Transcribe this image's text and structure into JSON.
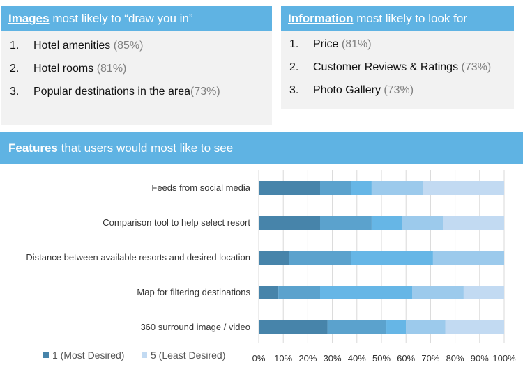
{
  "images_panel": {
    "title_highlight": "Images",
    "title_rest": " most likely to “draw you in”",
    "items": [
      {
        "num": "1.",
        "label": "Hotel amenities",
        "pct": "(85%)"
      },
      {
        "num": "2.",
        "label": "Hotel rooms",
        "pct": "(81%)"
      },
      {
        "num": "3.",
        "label": "Popular destinations in the area",
        "pct": "(73%)"
      }
    ]
  },
  "information_panel": {
    "title_highlight": "Information",
    "title_rest": " most likely to look for",
    "items": [
      {
        "num": "1.",
        "label": "Price",
        "pct": "(81%)"
      },
      {
        "num": "2.",
        "label": "Customer Reviews & Ratings",
        "pct": "(73%)"
      },
      {
        "num": "3.",
        "label": "Photo Gallery",
        "pct": "(73%)"
      }
    ]
  },
  "features_panel": {
    "title_highlight": "Features",
    "title_rest": " that users would most like to see"
  },
  "colors": {
    "header": "#5fb3e3",
    "panel_bg": "#f2f2f2",
    "series": [
      "#4784aa",
      "#5ba2cd",
      "#66b6e6",
      "#9ccaec",
      "#c2daf2"
    ]
  },
  "chart_data": {
    "type": "bar",
    "orientation": "horizontal",
    "stacked": true,
    "percent": true,
    "categories": [
      "Feeds from social media",
      "Comparison tool to help select resort",
      "Distance between available resorts and desired location",
      "Map for filtering destinations",
      "360 surround image / video"
    ],
    "series": [
      {
        "name": "1 (Most Desired)",
        "values": [
          25,
          25,
          12.5,
          8,
          28
        ]
      },
      {
        "values": [
          12.5,
          21,
          25,
          17,
          24
        ]
      },
      {
        "values": [
          8.5,
          12.5,
          33.5,
          37.5,
          8
        ]
      },
      {
        "values": [
          21,
          16.5,
          29,
          21,
          16
        ]
      },
      {
        "name": "5 (Least Desired)",
        "values": [
          33,
          25,
          0,
          16.5,
          24
        ]
      }
    ],
    "x_ticks": [
      "0%",
      "10%",
      "20%",
      "30%",
      "40%",
      "50%",
      "60%",
      "70%",
      "80%",
      "90%",
      "100%"
    ],
    "xlim": [
      0,
      100
    ],
    "grid": true,
    "legend": "bottom-left"
  }
}
